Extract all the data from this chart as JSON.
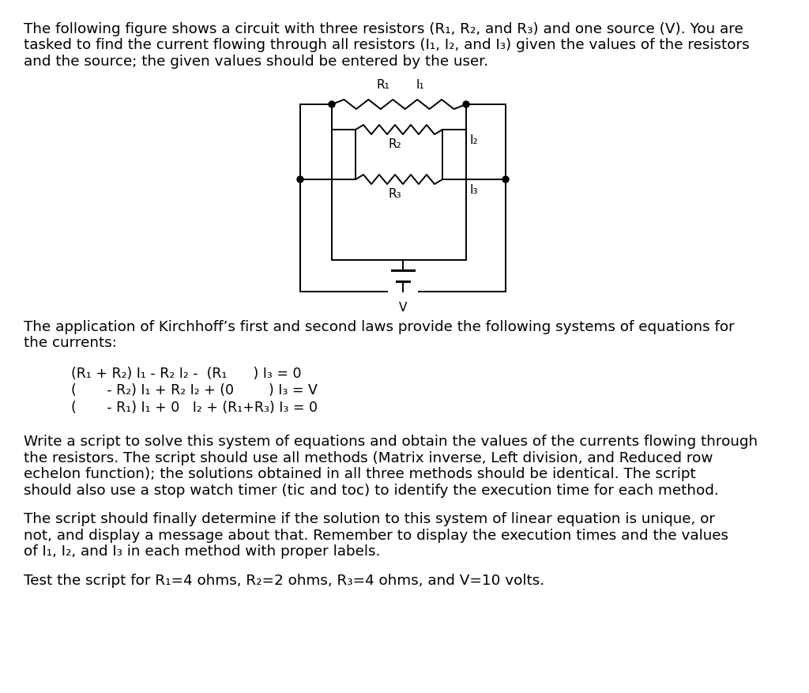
{
  "background_color": "#ffffff",
  "text_color": "#000000",
  "fig_width": 10.24,
  "fig_height": 8.78,
  "paragraph1_line1": "The following figure shows a circuit with three resistors (R₁, R₂, and R₃) and one source (V). You are",
  "paragraph1_line2": "tasked to find the current flowing through all resistors (I₁, I₂, and I₃) given the values of the resistors",
  "paragraph1_line3": "and the source; the given values should be entered by the user.",
  "paragraph2_line1": "The application of Kirchhoff’s first and second laws provide the following systems of equations for",
  "paragraph2_line2": "the currents:",
  "eq_line1": "(R₁ + R₂) I₁ - R₂ I₂ -  (R₁      ) I₃ = 0",
  "eq_line2": "(       - R₂) I₁ + R₂ I₂ + (0        ) I₃ = V",
  "eq_line3": "(       - R₁) I₁ + 0   I₂ + (R₁+R₃) I₃ = 0",
  "paragraph3_line1": "Write a script to solve this system of equations and obtain the values of the currents flowing through",
  "paragraph3_line2": "the resistors. The script should use all methods (Matrix inverse, Left division, and Reduced row",
  "paragraph3_line3": "echelon function); the solutions obtained in all three methods should be identical. The script",
  "paragraph3_line4": "should also use a stop watch timer (tic and toc) to identify the execution time for each method.",
  "paragraph4_line1": "The script should finally determine if the solution to this system of linear equation is unique, or",
  "paragraph4_line2": "not, and display a message about that. Remember to display the execution times and the values",
  "paragraph4_line3": "of I₁, I₂, and I₃ in each method with proper labels.",
  "paragraph5": "Test the script for R₁=4 ohms, R₂=2 ohms, R₃=4 ohms, and V=10 volts.",
  "font_size_body": 13.2,
  "font_size_eq": 12.5,
  "circuit_line_color": "#000000",
  "circuit_lw": 1.4
}
